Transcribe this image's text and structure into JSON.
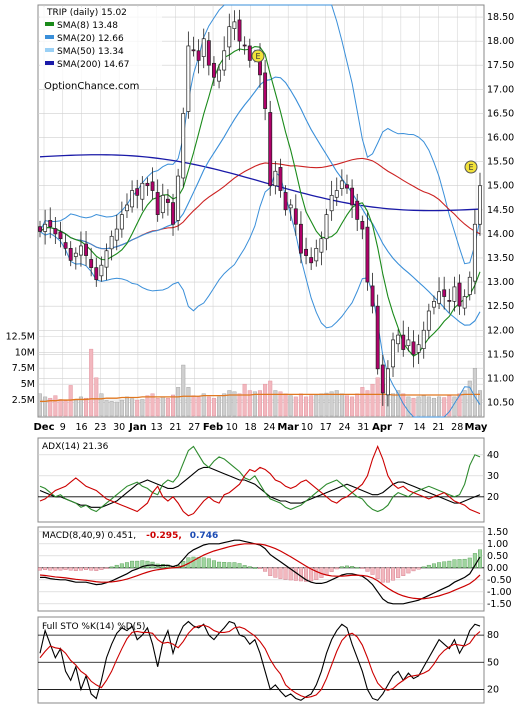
{
  "colors": {
    "background": "#ffffff",
    "grid": "#cfcfcf",
    "up_candle": "#2e8b2e",
    "down_candle": "#cc0033",
    "sma8": "#1a8a1a",
    "sma20": "#3a8fd9",
    "sma50": "#9ad0f5",
    "sma200": "#1a1aa8",
    "bollinger": "#3a8fd9",
    "volume_up": "#cfcfcf",
    "volume_down": "#f2b8bf",
    "volume_avg": "#e07820",
    "adx": "#000000",
    "plus_di": "#2e8b2e",
    "minus_di": "#cc0000",
    "macd_line": "#000000",
    "signal_line": "#cc0000",
    "hist_up": "#9fd49f",
    "hist_down": "#f2b8bf",
    "sto_k": "#000000",
    "sto_d": "#cc0000",
    "divergence_label": "#cc0000",
    "macd_value_label": "#1a4ab3",
    "marker": "#f2e23a"
  },
  "chart_data": [
    {
      "type": "candlestick",
      "panel": "price",
      "title": "TRIP (daily) 15.02",
      "watermark": "OptionChance.com",
      "legend": [
        {
          "label": "SMA(8) 13.48",
          "color": "#1a8a1a"
        },
        {
          "label": "SMA(20) 12.66",
          "color": "#3a8fd9"
        },
        {
          "label": "SMA(50) 13.34",
          "color": "#9ad0f5"
        },
        {
          "label": "SMA(200) 14.67",
          "color": "#1a1aa8"
        }
      ],
      "legend_placement": "top-left",
      "y_ticks": [
        "18.50",
        "18.00",
        "17.50",
        "17.00",
        "16.50",
        "16.00",
        "15.50",
        "15.00",
        "14.50",
        "14.00",
        "13.50",
        "13.00",
        "12.50",
        "12.00",
        "11.50",
        "11.00",
        "10.50"
      ],
      "ylim": [
        10.2,
        18.75
      ],
      "x_ticks": [
        "Dec",
        "9",
        "16",
        "23",
        "30",
        "Jan",
        "13",
        "21",
        "27",
        "Feb",
        "10",
        "18",
        "24",
        "Mar",
        "10",
        "17",
        "24",
        "31",
        "Apr",
        "7",
        "14",
        "21",
        "28",
        "May"
      ],
      "grid": true,
      "close": [
        14.05,
        14.2,
        14.15,
        14.0,
        13.9,
        13.7,
        13.45,
        13.6,
        13.75,
        13.55,
        13.3,
        13.05,
        13.35,
        13.65,
        13.95,
        14.1,
        14.4,
        14.6,
        14.9,
        14.8,
        15.05,
        15.0,
        14.9,
        14.4,
        14.8,
        14.65,
        14.2,
        15.2,
        16.5,
        17.9,
        17.8,
        17.6,
        18.05,
        17.5,
        17.25,
        17.4,
        17.8,
        18.3,
        18.4,
        18.0,
        17.9,
        17.6,
        17.7,
        17.3,
        16.6,
        15.0,
        15.3,
        14.9,
        14.5,
        14.6,
        14.2,
        13.6,
        13.55,
        13.4,
        13.7,
        13.9,
        14.4,
        14.8,
        14.9,
        15.1,
        14.95,
        14.6,
        14.3,
        14.1,
        13.0,
        12.5,
        11.2,
        10.7,
        11.2,
        11.8,
        11.9,
        11.6,
        11.8,
        11.5,
        11.7,
        12.0,
        12.4,
        12.6,
        12.8,
        12.7,
        12.6,
        12.9,
        12.5,
        12.7,
        13.1,
        14.2,
        15.0
      ]
    },
    {
      "type": "bar",
      "panel": "volume",
      "y_ticks": [
        "12.5M",
        "10M",
        "7.5M",
        "5M",
        "2.5M"
      ],
      "ylim": [
        0,
        13500000
      ],
      "values": [
        3.5,
        3.0,
        2.8,
        3.2,
        2.6,
        2.4,
        4.8,
        2.5,
        3.0,
        2.8,
        10.5,
        6.0,
        3.5,
        2.4,
        2.3,
        2.2,
        2.5,
        3.0,
        2.7,
        2.5,
        2.6,
        3.2,
        3.5,
        2.8,
        3.0,
        2.8,
        3.3,
        4.5,
        8.0,
        4.5,
        3.2,
        3.0,
        3.5,
        3.0,
        2.8,
        3.0,
        3.5,
        4.0,
        3.8,
        3.5,
        5.0,
        4.0,
        3.8,
        4.0,
        5.0,
        5.5,
        4.0,
        3.8,
        3.5,
        3.2,
        3.0,
        3.5,
        3.0,
        3.2,
        3.3,
        3.5,
        3.6,
        3.8,
        4.0,
        3.5,
        3.2,
        3.0,
        3.5,
        4.5,
        4.0,
        5.0,
        6.0,
        5.0,
        4.0,
        3.5,
        4.0,
        3.5,
        3.0,
        2.8,
        3.0,
        3.2,
        3.0,
        2.8,
        3.0,
        2.9,
        3.2,
        3.0,
        3.5,
        4.0,
        5.5,
        7.5,
        4.0
      ],
      "values_unit": "millions",
      "average": [
        2.3,
        2.3,
        2.4,
        2.4,
        2.5,
        2.5,
        2.5,
        2.6,
        2.6,
        2.6,
        2.7,
        2.7,
        2.7,
        2.8,
        2.8,
        2.8,
        2.9,
        2.9,
        2.9,
        2.9,
        3.0,
        3.0,
        3.0,
        3.0,
        3.0,
        3.0,
        3.0,
        3.0,
        3.1,
        3.1,
        3.1,
        3.1,
        3.2,
        3.2,
        3.2,
        3.2,
        3.2,
        3.3,
        3.3,
        3.3,
        3.3,
        3.3,
        3.4,
        3.4,
        3.4,
        3.4,
        3.4,
        3.4,
        3.4,
        3.4,
        3.4,
        3.4,
        3.4,
        3.4,
        3.4,
        3.4,
        3.4,
        3.4,
        3.4,
        3.4,
        3.4,
        3.4,
        3.4,
        3.4,
        3.4,
        3.4,
        3.4,
        3.4,
        3.4,
        3.3,
        3.3,
        3.3,
        3.3,
        3.3,
        3.3,
        3.3,
        3.3,
        3.3,
        3.3,
        3.3,
        3.3,
        3.3,
        3.3,
        3.4,
        3.4,
        3.4,
        3.4
      ]
    },
    {
      "type": "line",
      "panel": "adx",
      "title": "ADX(14) 21.36",
      "y_ticks": [
        "40",
        "30",
        "20"
      ],
      "ylim": [
        8,
        48
      ],
      "series": [
        {
          "name": "ADX(14)",
          "values": [
            23,
            22,
            21,
            20,
            20,
            19,
            18,
            17,
            16,
            16,
            15,
            15,
            15,
            16,
            17,
            18,
            20,
            22,
            24,
            26,
            27,
            28,
            27,
            26,
            25,
            24,
            24,
            25,
            27,
            29,
            31,
            33,
            34,
            34,
            33,
            32,
            31,
            30,
            29,
            28,
            28,
            27,
            26,
            24,
            22,
            20,
            19,
            18,
            18,
            17,
            17,
            17,
            18,
            19,
            20,
            21,
            22,
            23,
            24,
            25,
            26,
            25,
            24,
            23,
            22,
            21,
            21,
            22,
            24,
            26,
            27,
            27,
            26,
            25,
            24,
            23,
            22,
            21,
            20,
            19,
            18,
            17,
            17,
            18,
            19,
            20,
            21
          ]
        },
        {
          "name": "+DI",
          "values": [
            25,
            24,
            22,
            20,
            21,
            19,
            18,
            17,
            15,
            16,
            14,
            13,
            15,
            17,
            19,
            21,
            23,
            25,
            26,
            27,
            25,
            24,
            22,
            21,
            26,
            28,
            27,
            30,
            36,
            42,
            44,
            40,
            36,
            34,
            37,
            39,
            38,
            36,
            34,
            32,
            29,
            28,
            30,
            26,
            22,
            19,
            18,
            17,
            15,
            14,
            15,
            16,
            18,
            20,
            22,
            24,
            26,
            27,
            28,
            26,
            24,
            22,
            20,
            19,
            16,
            14,
            13,
            14,
            16,
            20,
            22,
            21,
            20,
            22,
            23,
            24,
            25,
            24,
            23,
            22,
            21,
            20,
            21,
            26,
            35,
            40,
            39
          ]
        },
        {
          "name": "-DI",
          "values": [
            18,
            19,
            21,
            23,
            24,
            25,
            27,
            29,
            27,
            25,
            24,
            23,
            21,
            19,
            18,
            17,
            16,
            15,
            14,
            13,
            15,
            17,
            22,
            25,
            20,
            18,
            20,
            17,
            13,
            11,
            12,
            15,
            18,
            20,
            18,
            17,
            21,
            22,
            24,
            26,
            30,
            33,
            32,
            34,
            33,
            31,
            28,
            27,
            25,
            24,
            25,
            27,
            28,
            26,
            24,
            22,
            20,
            18,
            17,
            19,
            20,
            22,
            24,
            26,
            30,
            38,
            44,
            38,
            30,
            26,
            24,
            25,
            23,
            22,
            21,
            20,
            19,
            20,
            21,
            22,
            20,
            18,
            17,
            16,
            14,
            13,
            12
          ]
        }
      ]
    },
    {
      "type": "bar",
      "panel": "macd",
      "title": "MACD(8,40,9) 0.451,",
      "annotations": [
        "-0.295,",
        "0.746"
      ],
      "y_ticks": [
        "1.50",
        "1.00",
        "0.50",
        "0.00",
        "-0.50",
        "-1.00",
        "-1.50"
      ],
      "ylim": [
        -1.8,
        1.7
      ],
      "series": [
        {
          "name": "MACD(8,40,9)",
          "values": [
            -0.4,
            -0.4,
            -0.45,
            -0.48,
            -0.5,
            -0.5,
            -0.55,
            -0.6,
            -0.6,
            -0.6,
            -0.65,
            -0.7,
            -0.68,
            -0.62,
            -0.55,
            -0.45,
            -0.35,
            -0.25,
            -0.12,
            -0.05,
            0.05,
            0.1,
            0.12,
            0.08,
            0.1,
            0.1,
            0.05,
            0.12,
            0.35,
            0.6,
            0.75,
            0.85,
            0.95,
            1.0,
            1.0,
            1.0,
            1.05,
            1.1,
            1.15,
            1.15,
            1.1,
            1.05,
            1.0,
            0.95,
            0.8,
            0.55,
            0.4,
            0.25,
            0.1,
            -0.05,
            -0.2,
            -0.35,
            -0.5,
            -0.6,
            -0.65,
            -0.65,
            -0.6,
            -0.5,
            -0.4,
            -0.3,
            -0.25,
            -0.25,
            -0.3,
            -0.35,
            -0.5,
            -0.7,
            -1.0,
            -1.3,
            -1.45,
            -1.5,
            -1.5,
            -1.5,
            -1.45,
            -1.4,
            -1.35,
            -1.25,
            -1.15,
            -1.05,
            -0.95,
            -0.85,
            -0.75,
            -0.6,
            -0.5,
            -0.4,
            -0.25,
            0.1,
            0.45
          ]
        },
        {
          "name": "Signal",
          "values": [
            -0.3,
            -0.32,
            -0.35,
            -0.38,
            -0.4,
            -0.42,
            -0.45,
            -0.48,
            -0.5,
            -0.52,
            -0.55,
            -0.58,
            -0.6,
            -0.6,
            -0.59,
            -0.56,
            -0.52,
            -0.47,
            -0.4,
            -0.33,
            -0.25,
            -0.18,
            -0.12,
            -0.08,
            -0.05,
            -0.02,
            0.0,
            0.02,
            0.08,
            0.18,
            0.3,
            0.42,
            0.53,
            0.62,
            0.7,
            0.76,
            0.82,
            0.88,
            0.93,
            0.97,
            1.0,
            1.0,
            1.0,
            0.99,
            0.95,
            0.88,
            0.8,
            0.7,
            0.58,
            0.46,
            0.33,
            0.2,
            0.07,
            -0.05,
            -0.15,
            -0.24,
            -0.3,
            -0.34,
            -0.35,
            -0.35,
            -0.33,
            -0.31,
            -0.31,
            -0.32,
            -0.35,
            -0.42,
            -0.54,
            -0.7,
            -0.85,
            -0.98,
            -1.09,
            -1.17,
            -1.23,
            -1.27,
            -1.29,
            -1.29,
            -1.26,
            -1.22,
            -1.17,
            -1.1,
            -1.03,
            -0.94,
            -0.85,
            -0.76,
            -0.66,
            -0.5,
            -0.3
          ]
        }
      ]
    },
    {
      "type": "line",
      "panel": "stochastic",
      "title": "Full STO %K(14) %D(5)",
      "y_ticks": [
        "80",
        "50",
        "20"
      ],
      "ylim": [
        5,
        100
      ],
      "series": [
        {
          "name": "%K(14)",
          "values": [
            60,
            85,
            70,
            55,
            65,
            40,
            30,
            45,
            20,
            35,
            15,
            10,
            30,
            55,
            70,
            82,
            88,
            85,
            90,
            75,
            80,
            88,
            70,
            45,
            72,
            85,
            60,
            78,
            90,
            95,
            90,
            88,
            92,
            80,
            75,
            82,
            88,
            95,
            93,
            80,
            78,
            70,
            75,
            60,
            40,
            20,
            25,
            18,
            12,
            15,
            10,
            8,
            12,
            15,
            25,
            40,
            60,
            75,
            85,
            92,
            88,
            70,
            55,
            40,
            20,
            10,
            8,
            15,
            25,
            35,
            40,
            30,
            38,
            32,
            35,
            45,
            55,
            65,
            75,
            70,
            65,
            75,
            60,
            70,
            85,
            92,
            90
          ]
        },
        {
          "name": "%D(5)",
          "values": [
            55,
            62,
            68,
            66,
            65,
            60,
            52,
            47,
            40,
            36,
            29,
            25,
            22,
            30,
            40,
            53,
            65,
            76,
            83,
            84,
            83,
            83,
            82,
            75,
            71,
            72,
            70,
            66,
            73,
            82,
            88,
            90,
            91,
            89,
            85,
            83,
            83,
            84,
            88,
            89,
            87,
            83,
            79,
            73,
            65,
            53,
            44,
            37,
            25,
            20,
            16,
            13,
            11,
            12,
            14,
            20,
            32,
            47,
            62,
            74,
            80,
            82,
            78,
            69,
            55,
            39,
            27,
            21,
            19,
            21,
            26,
            30,
            34,
            35,
            36,
            38,
            41,
            48,
            57,
            63,
            67,
            70,
            69,
            68,
            71,
            79,
            84
          ]
        }
      ]
    }
  ]
}
